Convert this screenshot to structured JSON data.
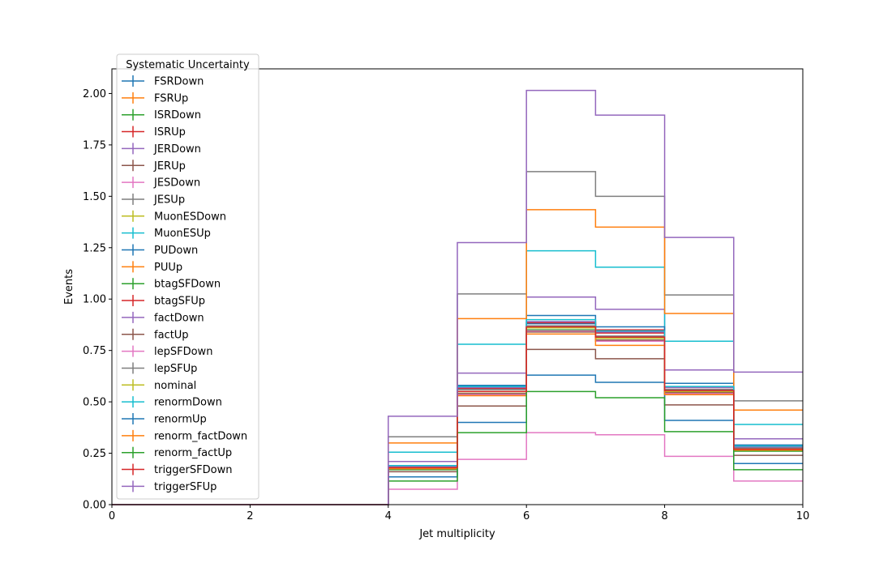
{
  "chart_data": {
    "type": "line",
    "drawstyle": "steps",
    "xlabel": "Jet multiplicity",
    "ylabel": "Events",
    "xlim": [
      0,
      10
    ],
    "ylim": [
      0,
      2.12
    ],
    "xticks": [
      "0",
      "2",
      "4",
      "6",
      "8",
      "10"
    ],
    "yticks": [
      "0.00",
      "0.25",
      "0.50",
      "0.75",
      "1.00",
      "1.25",
      "1.50",
      "1.75",
      "2.00"
    ],
    "grid": false,
    "legend": {
      "title": "Systematic Uncertainty",
      "placement": "upper-left"
    },
    "bin_edges": [
      0,
      1,
      2,
      3,
      4,
      5,
      6,
      7,
      8,
      9,
      10
    ],
    "series": [
      {
        "name": "FSRDown",
        "color": "#1f77b4",
        "values": [
          0,
          0,
          0,
          0,
          0.18,
          0.56,
          0.88,
          0.84,
          0.56,
          0.27
        ]
      },
      {
        "name": "FSRUp",
        "color": "#ff7f0e",
        "values": [
          0,
          0,
          0,
          0,
          0.18,
          0.55,
          0.86,
          0.8,
          0.55,
          0.27
        ]
      },
      {
        "name": "ISRDown",
        "color": "#2ca02c",
        "values": [
          0,
          0,
          0,
          0,
          0.17,
          0.54,
          0.85,
          0.8,
          0.54,
          0.26
        ]
      },
      {
        "name": "ISRUp",
        "color": "#d62728",
        "values": [
          0,
          0,
          0,
          0,
          0.19,
          0.57,
          0.89,
          0.85,
          0.57,
          0.28
        ]
      },
      {
        "name": "JERDown",
        "color": "#9467bd",
        "values": [
          0,
          0,
          0,
          0,
          0.21,
          0.64,
          1.01,
          0.95,
          0.655,
          0.32
        ]
      },
      {
        "name": "JERUp",
        "color": "#8c564b",
        "values": [
          0,
          0,
          0,
          0,
          0.16,
          0.48,
          0.755,
          0.71,
          0.485,
          0.24
        ]
      },
      {
        "name": "JESDown",
        "color": "#e377c2",
        "values": [
          0,
          0,
          0,
          0,
          0.075,
          0.22,
          0.35,
          0.34,
          0.235,
          0.115
        ]
      },
      {
        "name": "JESUp",
        "color": "#7f7f7f",
        "values": [
          0,
          0,
          0,
          0,
          0.33,
          1.025,
          1.62,
          1.5,
          1.02,
          0.505
        ]
      },
      {
        "name": "MuonESDown",
        "color": "#bcbd22",
        "values": [
          0,
          0,
          0,
          0,
          0.18,
          0.55,
          0.86,
          0.81,
          0.55,
          0.27
        ]
      },
      {
        "name": "MuonESUp",
        "color": "#17becf",
        "values": [
          0,
          0,
          0,
          0,
          0.255,
          0.78,
          1.235,
          1.155,
          0.795,
          0.39
        ]
      },
      {
        "name": "PUDown",
        "color": "#1f77b4",
        "values": [
          0,
          0,
          0,
          0,
          0.19,
          0.58,
          0.92,
          0.865,
          0.59,
          0.29
        ]
      },
      {
        "name": "PUUp",
        "color": "#ff7f0e",
        "values": [
          0,
          0,
          0,
          0,
          0.3,
          0.905,
          1.435,
          1.35,
          0.93,
          0.46
        ]
      },
      {
        "name": "btagSFDown",
        "color": "#2ca02c",
        "values": [
          0,
          0,
          0,
          0,
          0.175,
          0.535,
          0.845,
          0.795,
          0.54,
          0.265
        ]
      },
      {
        "name": "btagSFUp",
        "color": "#d62728",
        "values": [
          0,
          0,
          0,
          0,
          0.185,
          0.565,
          0.885,
          0.835,
          0.57,
          0.28
        ]
      },
      {
        "name": "factDown",
        "color": "#9467bd",
        "values": [
          0,
          0,
          0,
          0,
          0.185,
          0.57,
          0.89,
          0.84,
          0.57,
          0.28
        ]
      },
      {
        "name": "factUp",
        "color": "#8c564b",
        "values": [
          0,
          0,
          0,
          0,
          0.175,
          0.54,
          0.84,
          0.8,
          0.545,
          0.265
        ]
      },
      {
        "name": "lepSFDown",
        "color": "#e377c2",
        "values": [
          0,
          0,
          0,
          0,
          0.175,
          0.535,
          0.845,
          0.795,
          0.54,
          0.265
        ]
      },
      {
        "name": "lepSFUp",
        "color": "#7f7f7f",
        "values": [
          0,
          0,
          0,
          0,
          0.18,
          0.56,
          0.87,
          0.82,
          0.56,
          0.275
        ]
      },
      {
        "name": "nominal",
        "color": "#bcbd22",
        "values": [
          0,
          0,
          0,
          0,
          0.18,
          0.55,
          0.86,
          0.81,
          0.55,
          0.27
        ]
      },
      {
        "name": "renormDown",
        "color": "#17becf",
        "values": [
          0,
          0,
          0,
          0,
          0.19,
          0.575,
          0.9,
          0.845,
          0.575,
          0.285
        ]
      },
      {
        "name": "renormUp",
        "color": "#1f77b4",
        "values": [
          0,
          0,
          0,
          0,
          0.135,
          0.4,
          0.63,
          0.595,
          0.41,
          0.2
        ]
      },
      {
        "name": "renorm_factDown",
        "color": "#ff7f0e",
        "values": [
          0,
          0,
          0,
          0,
          0.175,
          0.53,
          0.83,
          0.775,
          0.535,
          0.265
        ]
      },
      {
        "name": "renorm_factUp",
        "color": "#2ca02c",
        "values": [
          0,
          0,
          0,
          0,
          0.115,
          0.35,
          0.55,
          0.52,
          0.355,
          0.17
        ]
      },
      {
        "name": "triggerSFDown",
        "color": "#d62728",
        "values": [
          0,
          0,
          0,
          0,
          0.18,
          0.55,
          0.865,
          0.815,
          0.555,
          0.27
        ]
      },
      {
        "name": "triggerSFUp",
        "color": "#9467bd",
        "values": [
          0,
          0,
          0,
          0,
          0.43,
          1.275,
          2.015,
          1.895,
          1.3,
          0.645
        ]
      }
    ]
  }
}
